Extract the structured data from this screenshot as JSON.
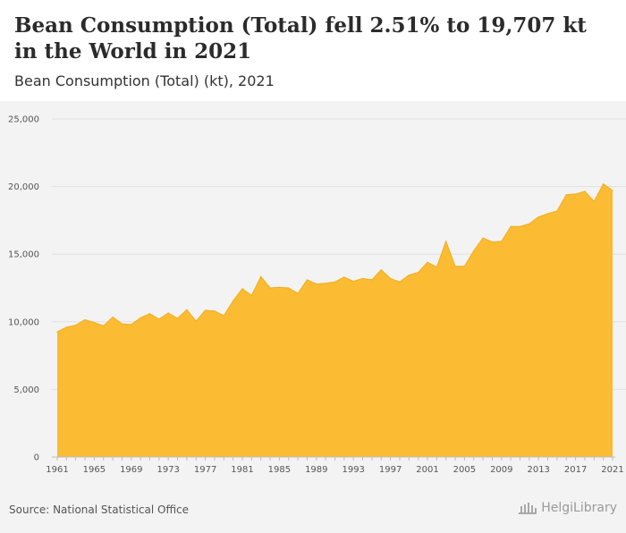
{
  "header": {
    "title": "Bean Consumption (Total) fell 2.51% to 19,707 kt in the World in 2021",
    "subtitle": "Bean Consumption (Total) (kt), 2021"
  },
  "footer": {
    "source": "Source: National Statistical Office",
    "logo_text": "HelgiLibrary"
  },
  "colors": {
    "area_fill": "#fbbb33",
    "area_stroke": "#f2ae1c",
    "grid": "#e1e1e1",
    "tick_text": "#555555"
  },
  "chart_data": {
    "type": "area",
    "title": "Bean Consumption (Total) fell 2.51% to 19,707 kt in the World in 2021",
    "subtitle": "Bean Consumption (Total) (kt), 2021",
    "xlabel": "",
    "ylabel": "",
    "ylim": [
      0,
      25000
    ],
    "yticks": [
      0,
      5000,
      10000,
      15000,
      20000,
      25000
    ],
    "ytick_labels": [
      "0",
      "5,000",
      "10,000",
      "15,000",
      "20,000",
      "25,000"
    ],
    "xticks": [
      1961,
      1965,
      1969,
      1973,
      1977,
      1981,
      1985,
      1989,
      1993,
      1997,
      2001,
      2005,
      2009,
      2013,
      2017,
      2021
    ],
    "grid": true,
    "series": [
      {
        "name": "Bean Consumption (Total)",
        "x": [
          1961,
          1962,
          1963,
          1964,
          1965,
          1966,
          1967,
          1968,
          1969,
          1970,
          1971,
          1972,
          1973,
          1974,
          1975,
          1976,
          1977,
          1978,
          1979,
          1980,
          1981,
          1982,
          1983,
          1984,
          1985,
          1986,
          1987,
          1988,
          1989,
          1990,
          1991,
          1992,
          1993,
          1994,
          1995,
          1996,
          1997,
          1998,
          1999,
          2000,
          2001,
          2002,
          2003,
          2004,
          2005,
          2006,
          2007,
          2008,
          2009,
          2010,
          2011,
          2012,
          2013,
          2014,
          2015,
          2016,
          2017,
          2018,
          2019,
          2020,
          2021
        ],
        "values": [
          9250,
          9600,
          9750,
          10150,
          9950,
          9700,
          10350,
          9850,
          9800,
          10300,
          10600,
          10200,
          10650,
          10250,
          10900,
          10050,
          10850,
          10800,
          10450,
          11550,
          12450,
          11950,
          13350,
          12500,
          12550,
          12500,
          12100,
          13100,
          12800,
          12850,
          12950,
          13300,
          13000,
          13200,
          13100,
          13850,
          13200,
          12950,
          13450,
          13650,
          14400,
          14050,
          15950,
          14100,
          14100,
          15250,
          16200,
          15900,
          15950,
          17050,
          17050,
          17250,
          17750,
          18000,
          18200,
          19400,
          19450,
          19650,
          18900,
          20200,
          19707
        ]
      }
    ]
  }
}
